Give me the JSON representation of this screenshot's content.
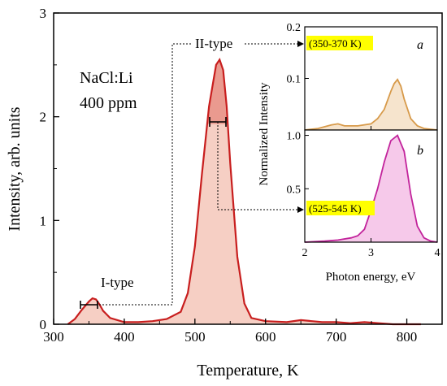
{
  "colors": {
    "main_curve": "#c81e1e",
    "main_fill": "#f6cfc4",
    "peak_fill": "#ea9a8f",
    "inset_a": "#d79a4a",
    "inset_a_fill": "#f6e4cd",
    "inset_b": "#c2239b",
    "inset_b_fill": "#f6c9ea",
    "highlight": "#ffff00"
  },
  "chart_data": [
    {
      "type": "area",
      "xlabel": "Temperature, K",
      "ylabel": "Intensity, arb. units",
      "xlim": [
        300,
        850
      ],
      "ylim": [
        0,
        3
      ],
      "xticks": [
        300,
        400,
        500,
        600,
        700,
        800
      ],
      "yticks": [
        0,
        1,
        2,
        3
      ],
      "x": [
        320,
        330,
        340,
        350,
        355,
        360,
        365,
        370,
        380,
        400,
        420,
        440,
        460,
        480,
        490,
        500,
        510,
        520,
        530,
        535,
        540,
        545,
        550,
        560,
        570,
        580,
        600,
        630,
        650,
        680,
        700,
        720,
        740,
        760,
        780,
        800,
        820
      ],
      "y": [
        0.0,
        0.05,
        0.14,
        0.22,
        0.25,
        0.24,
        0.19,
        0.13,
        0.06,
        0.02,
        0.02,
        0.03,
        0.05,
        0.12,
        0.3,
        0.75,
        1.45,
        2.1,
        2.5,
        2.55,
        2.45,
        2.1,
        1.55,
        0.65,
        0.2,
        0.06,
        0.03,
        0.02,
        0.04,
        0.02,
        0.02,
        0.01,
        0.02,
        0.01,
        0.0,
        0.0,
        0.0
      ],
      "annotations": [
        "I-type",
        "II-type",
        "NaCl:Li",
        "400 ppm"
      ]
    },
    {
      "type": "area",
      "panel": "a",
      "range_label": "(350-370 K)",
      "ylabel": "Normalized Intensity",
      "xlim": [
        2,
        4
      ],
      "ylim": [
        0,
        0.2
      ],
      "yticks": [
        0.1,
        0.2
      ],
      "x": [
        2.0,
        2.2,
        2.4,
        2.5,
        2.6,
        2.8,
        3.0,
        3.1,
        3.2,
        3.3,
        3.35,
        3.4,
        3.45,
        3.5,
        3.6,
        3.7,
        3.8,
        4.0
      ],
      "y": [
        0.0,
        0.003,
        0.01,
        0.012,
        0.008,
        0.008,
        0.012,
        0.022,
        0.04,
        0.075,
        0.09,
        0.098,
        0.085,
        0.06,
        0.022,
        0.008,
        0.003,
        0.0
      ]
    },
    {
      "type": "area",
      "panel": "b",
      "range_label": "(525-545 K)",
      "xlabel": "Photon energy, eV",
      "xlim": [
        2,
        4
      ],
      "ylim": [
        0,
        1.05
      ],
      "xticks": [
        2,
        3,
        4
      ],
      "yticks": [
        0.5,
        1.0
      ],
      "x": [
        2.0,
        2.3,
        2.5,
        2.7,
        2.8,
        2.9,
        3.0,
        3.1,
        3.2,
        3.3,
        3.4,
        3.5,
        3.6,
        3.7,
        3.8,
        3.9,
        4.0
      ],
      "y": [
        0.0,
        0.01,
        0.02,
        0.04,
        0.06,
        0.12,
        0.3,
        0.5,
        0.75,
        0.95,
        1.0,
        0.85,
        0.45,
        0.15,
        0.04,
        0.01,
        0.0
      ]
    }
  ],
  "labels": {
    "sample": "NaCl:Li",
    "concentration": "400 ppm",
    "type1": "I-type",
    "type2": "II-type"
  },
  "inset": {
    "ylabel": "Normalized Intensity",
    "xlabel": "Photon energy, eV",
    "panel_a": {
      "letter": "a",
      "range": "(350-370 K)"
    },
    "panel_b": {
      "letter": "b",
      "range": "(525-545 K)"
    }
  }
}
